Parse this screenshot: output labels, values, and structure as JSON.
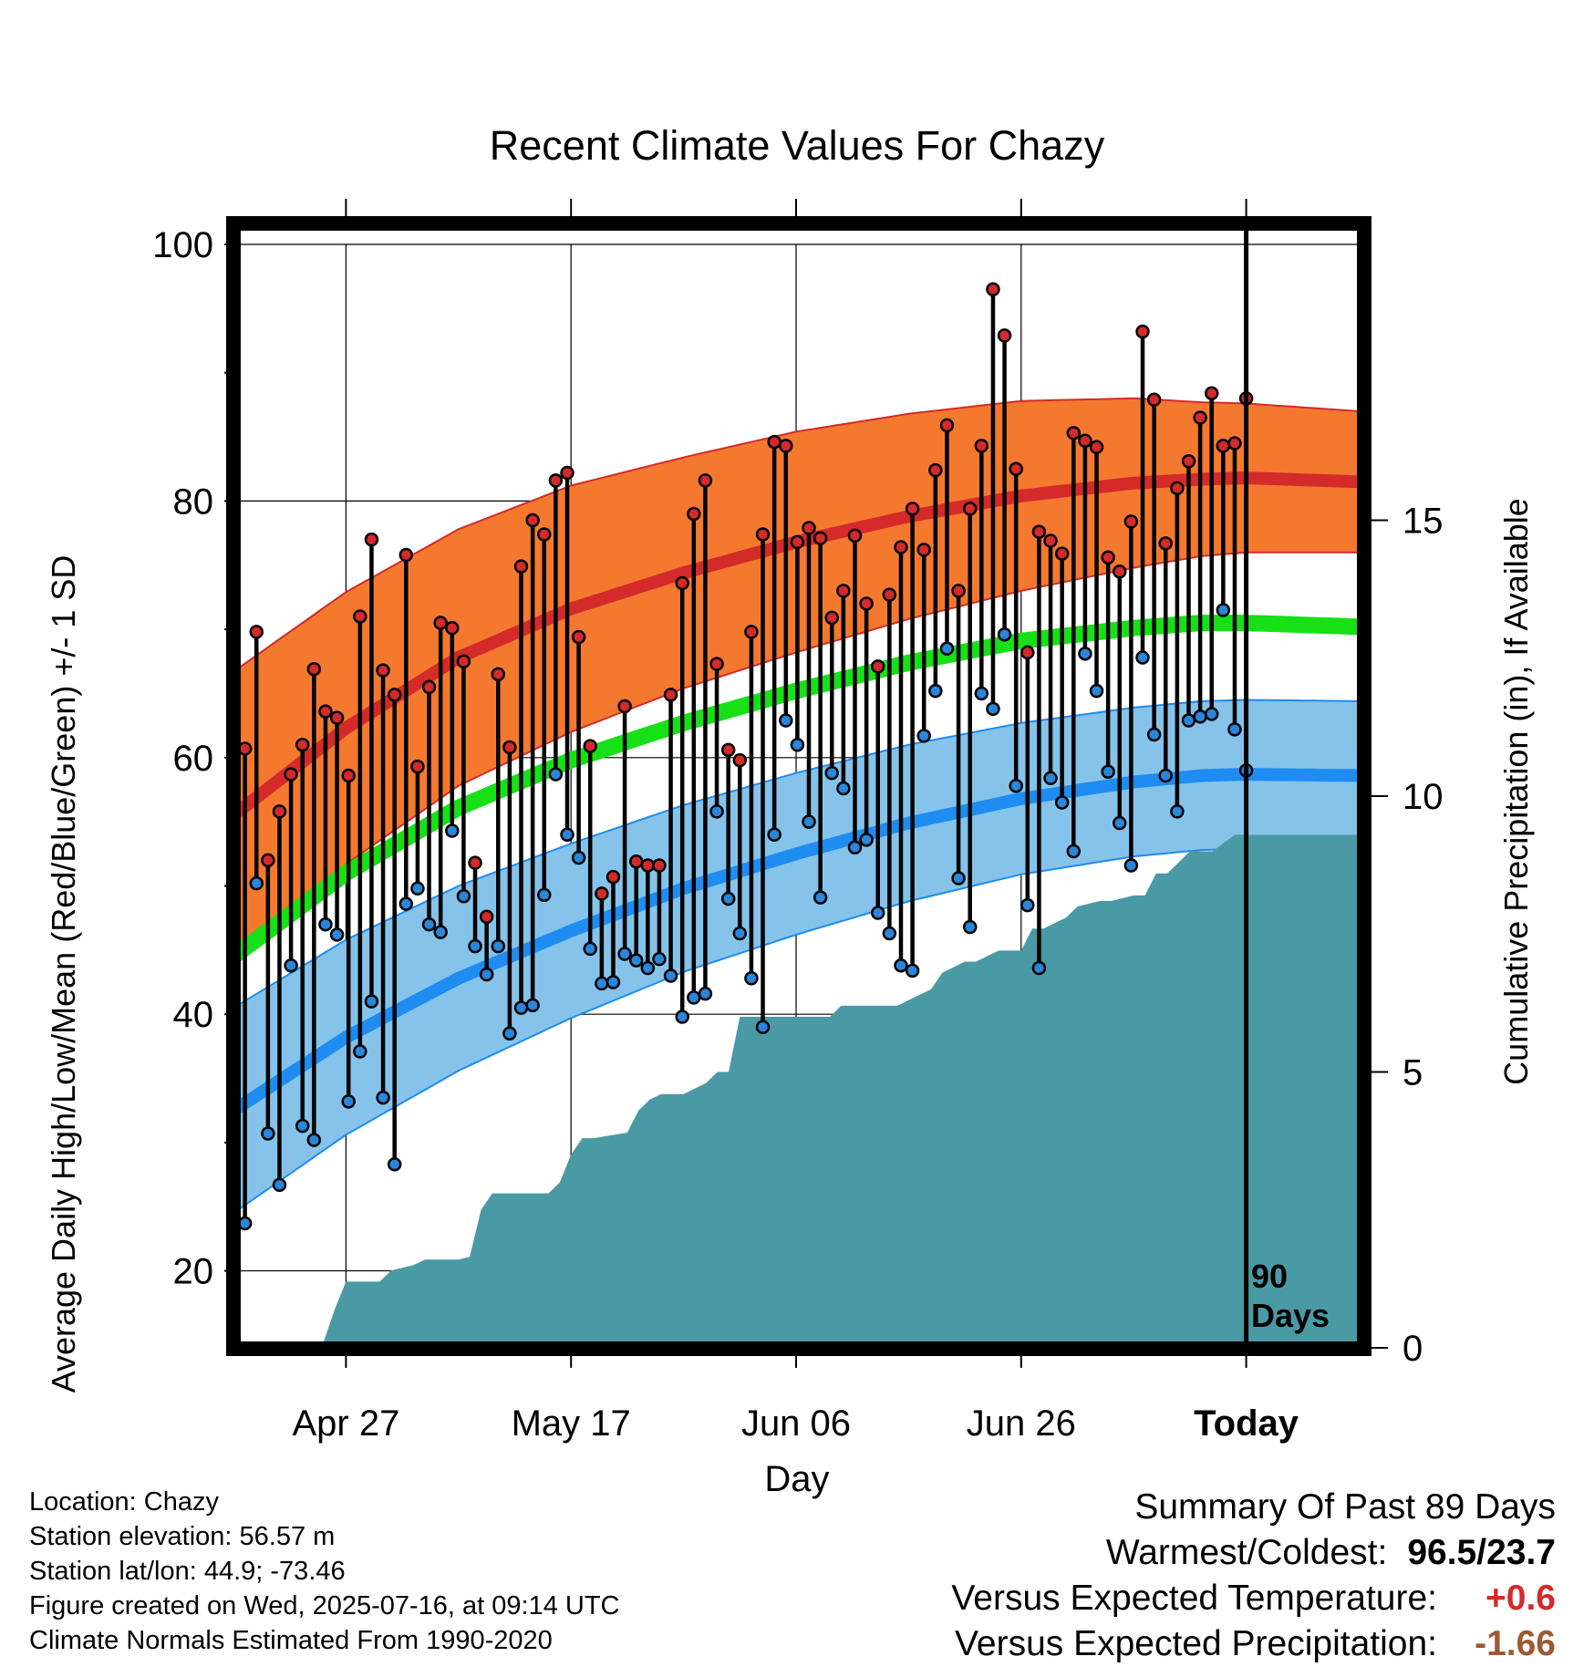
{
  "title": "Recent Climate Values For Chazy",
  "xlabel": "Day",
  "ylabel_left": "Average Daily High/Low/Mean (Red/Blue/Green) +/- 1 SD",
  "ylabel_right": "Cumulative Precipitation (in), If Available",
  "today_label": "Today",
  "days_label_1": "90",
  "days_label_2": "Days",
  "info": {
    "location": "Location: Chazy",
    "elevation": "Station elevation: 56.57 m",
    "latlon": "Station lat/lon: 44.9; -73.46",
    "created": "Figure created on Wed, 2025-07-16, at 09:14 UTC",
    "normals": "Climate Normals Estimated From 1990-2020"
  },
  "summary": {
    "header": "Summary Of Past 89 Days",
    "warmest_coldest_label": "Warmest/Coldest:",
    "warmest_coldest_value": "96.5/23.7",
    "temp_label": "Versus Expected Temperature:",
    "temp_value": "+0.6",
    "precip_label": "Versus Expected Precipitation:",
    "precip_value": "-1.66"
  },
  "colors": {
    "high_band": "#f4792f",
    "high_line": "#d42a2a",
    "low_band": "#86c3ea",
    "low_line": "#1e8cf0",
    "mean_line": "#17e017",
    "precip_fill": "#4a9aa5",
    "high_dot": "#d42a2a",
    "low_dot": "#2a86d8"
  },
  "chart_data": {
    "type": "line",
    "xlim": [
      0,
      100
    ],
    "ylim": [
      14,
      100
    ],
    "y2lim": [
      0,
      20
    ],
    "x_ticks": [
      {
        "x": 10,
        "label": "Apr 27"
      },
      {
        "x": 30,
        "label": "May 17"
      },
      {
        "x": 50,
        "label": "Jun 06"
      },
      {
        "x": 70,
        "label": "Jun 26"
      },
      {
        "x": 90,
        "label": "Today"
      }
    ],
    "y_ticks": [
      20,
      40,
      60,
      80,
      100
    ],
    "y2_ticks": [
      0,
      5,
      10,
      15
    ],
    "today_x": 90,
    "normals": {
      "x": [
        0,
        10,
        20,
        30,
        40,
        50,
        60,
        70,
        80,
        86,
        90,
        100
      ],
      "high_mean": [
        55.5,
        62.3,
        67.8,
        71.6,
        74.4,
        76.8,
        78.8,
        80.4,
        81.4,
        81.7,
        81.8,
        81.5
      ],
      "high_sd": [
        11.2,
        10.6,
        10.0,
        9.6,
        9.0,
        8.6,
        8.0,
        7.4,
        6.6,
        6.0,
        5.8,
        5.5
      ],
      "mean": [
        44.5,
        51.0,
        56.1,
        59.8,
        62.7,
        65.2,
        67.4,
        69.1,
        70.1,
        70.5,
        70.5,
        70.2
      ],
      "low_mean": [
        32.5,
        38.2,
        42.8,
        46.5,
        49.8,
        52.5,
        54.9,
        56.8,
        58.1,
        58.6,
        58.7,
        58.6
      ],
      "low_sd": [
        8.0,
        7.6,
        7.2,
        6.8,
        6.5,
        6.3,
        6.1,
        5.9,
        5.8,
        5.8,
        5.8,
        5.8
      ]
    },
    "daily": {
      "high": [
        50.5,
        60.7,
        69.8,
        52.0,
        55.8,
        58.7,
        61.0,
        66.9,
        63.6,
        63.1,
        58.6,
        71.0,
        77.0,
        66.8,
        64.9,
        75.8,
        59.3,
        65.5,
        70.5,
        70.1,
        67.5,
        51.8,
        47.6,
        66.5,
        60.8,
        74.9,
        78.5,
        77.4,
        81.6,
        82.2,
        69.4,
        60.9,
        49.4,
        50.7,
        64.0,
        51.9,
        51.6,
        51.6,
        64.9,
        73.6,
        79.0,
        81.6,
        67.3,
        60.6,
        59.8,
        69.8,
        77.4,
        84.6,
        84.3,
        76.8,
        77.9,
        77.1,
        70.9,
        73.0,
        77.3,
        72.0,
        67.1,
        72.7,
        76.4,
        79.4,
        76.2,
        82.4,
        85.9,
        73.0,
        79.4,
        84.3,
        96.5,
        92.9,
        82.5,
        68.2,
        77.6,
        76.9,
        75.9,
        85.3,
        84.7,
        84.2,
        75.6,
        74.5,
        78.4,
        93.2,
        87.9,
        76.7,
        81.0,
        83.1,
        86.5,
        88.4,
        84.3,
        84.5,
        88.0
      ],
      "low": [
        27.3,
        23.7,
        50.2,
        30.7,
        26.7,
        43.8,
        31.3,
        30.2,
        47.0,
        46.2,
        33.2,
        37.1,
        41.0,
        33.5,
        28.3,
        48.6,
        49.8,
        47.0,
        46.4,
        54.3,
        49.2,
        45.3,
        43.1,
        45.3,
        38.5,
        40.5,
        40.7,
        49.3,
        58.7,
        54.0,
        52.2,
        45.1,
        42.4,
        42.5,
        44.7,
        44.2,
        43.6,
        44.3,
        43.0,
        39.8,
        41.3,
        41.6,
        55.8,
        49.0,
        46.3,
        42.8,
        39.0,
        54.0,
        62.9,
        61.0,
        55.0,
        49.1,
        58.8,
        57.6,
        53.0,
        53.6,
        47.9,
        46.3,
        43.8,
        43.4,
        61.7,
        65.2,
        68.5,
        50.6,
        46.8,
        65.0,
        63.8,
        69.6,
        57.8,
        48.5,
        43.6,
        58.4,
        56.5,
        52.7,
        68.1,
        65.2,
        58.9,
        54.9,
        51.6,
        67.8,
        61.8,
        58.6,
        55.8,
        62.9,
        63.2,
        63.4,
        71.5,
        62.2,
        59.0
      ]
    },
    "precip": {
      "x": [
        0,
        3,
        4,
        8,
        9,
        10,
        11,
        13,
        14,
        16,
        17,
        20,
        21,
        22,
        23,
        24,
        27,
        28,
        29,
        30,
        31,
        32,
        35,
        36,
        37,
        38,
        39,
        40,
        42,
        43,
        44,
        45,
        46,
        48,
        50,
        52,
        53,
        54,
        56,
        58,
        59,
        60,
        62,
        63,
        65,
        66,
        68,
        70,
        71,
        72,
        74,
        75,
        77,
        78,
        80,
        81,
        82,
        83,
        84,
        85,
        86,
        87,
        89,
        90,
        100
      ],
      "cum": [
        0,
        0,
        0.05,
        0.1,
        0.7,
        1.2,
        1.2,
        1.2,
        1.4,
        1.5,
        1.6,
        1.6,
        1.65,
        2.5,
        2.8,
        2.8,
        2.8,
        2.8,
        3.0,
        3.5,
        3.8,
        3.8,
        3.9,
        4.3,
        4.5,
        4.6,
        4.6,
        4.6,
        4.8,
        5.0,
        5.0,
        6.0,
        6.0,
        6.0,
        6.0,
        6.0,
        6.0,
        6.2,
        6.2,
        6.2,
        6.2,
        6.3,
        6.5,
        6.8,
        7.0,
        7.0,
        7.2,
        7.2,
        7.6,
        7.6,
        7.8,
        8.0,
        8.1,
        8.1,
        8.2,
        8.2,
        8.6,
        8.6,
        8.8,
        9.0,
        9.0,
        9.0,
        9.3,
        9.3,
        9.3
      ]
    }
  }
}
